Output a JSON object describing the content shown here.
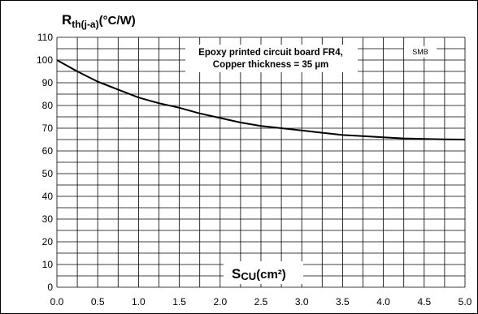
{
  "chart_data": {
    "type": "line",
    "ylabel_main": "R",
    "ylabel_sub": "th(j-a)",
    "ylabel_unit": "(°C/W)",
    "xlabel_main": "S",
    "xlabel_sub": "CU",
    "xlabel_unit": "(cm²)",
    "annotation_line1": "Epoxy printed circuit board FR4,",
    "annotation_line2": "Copper thickness = 35 µm",
    "package_tag": "SMB",
    "xlim": [
      0,
      5
    ],
    "ylim": [
      0,
      110
    ],
    "grid": true,
    "x_ticks": [
      {
        "value": 0,
        "label": "0.0"
      },
      {
        "value": 0.5,
        "label": "0.5"
      },
      {
        "value": 1,
        "label": "1.0"
      },
      {
        "value": 1.5,
        "label": "1.5"
      },
      {
        "value": 2,
        "label": "2.0"
      },
      {
        "value": 2.5,
        "label": "2.5"
      },
      {
        "value": 3,
        "label": "3.0"
      },
      {
        "value": 3.5,
        "label": "3.5"
      },
      {
        "value": 4,
        "label": "4.0"
      },
      {
        "value": 4.5,
        "label": "4.5"
      },
      {
        "value": 5,
        "label": "5.0"
      }
    ],
    "y_ticks": [
      0,
      10,
      20,
      30,
      40,
      50,
      60,
      70,
      80,
      90,
      100,
      110
    ],
    "series": [
      {
        "x": [
          0,
          0.25,
          0.5,
          0.75,
          1.0,
          1.25,
          1.5,
          1.75,
          2.0,
          2.25,
          2.5,
          2.75,
          3.0,
          3.25,
          3.5,
          3.75,
          4.0,
          4.25,
          4.5,
          4.75,
          5.0
        ],
        "y": [
          100,
          95,
          90.5,
          87,
          83.5,
          81,
          79,
          76.5,
          74.5,
          72.5,
          71,
          70,
          69,
          68,
          67,
          66.5,
          66,
          65.5,
          65.3,
          65.1,
          65
        ]
      }
    ]
  }
}
